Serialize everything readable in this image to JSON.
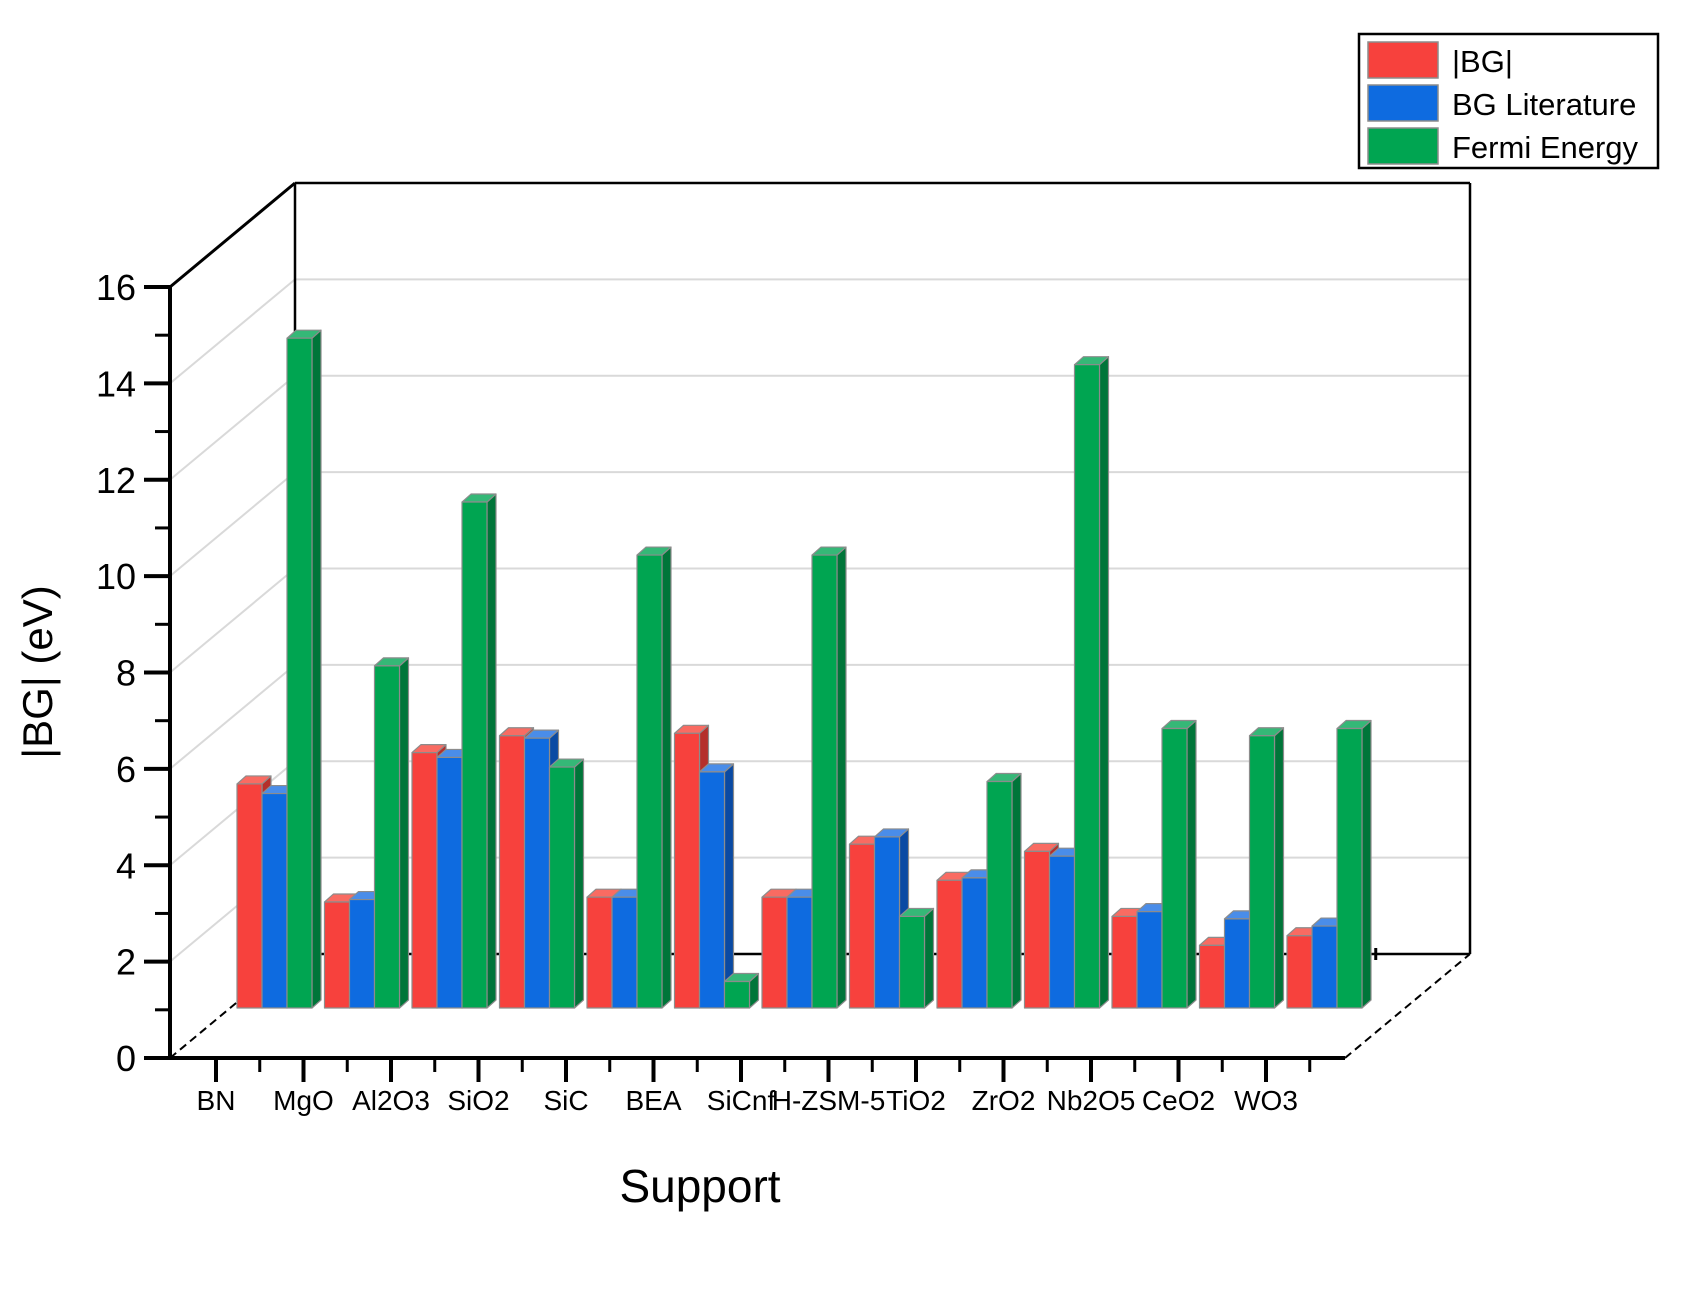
{
  "chart_data": {
    "type": "bar",
    "projection": "3d-parallel",
    "title": "",
    "xlabel": "Support",
    "ylabel": "|BG| (eV)",
    "ylim": [
      0,
      16
    ],
    "ytick_step": 2,
    "yticks": [
      0,
      2,
      4,
      6,
      8,
      10,
      12,
      14,
      16
    ],
    "grid": true,
    "legend_position": "top-right",
    "categories": [
      "BN",
      "MgO",
      "Al2O3",
      "SiO2",
      "SiC",
      "BEA",
      "SiCnf",
      "H-ZSM-5",
      "TiO2",
      "ZrO2",
      "Nb2O5",
      "CeO2",
      "WO3"
    ],
    "series": [
      {
        "name": "|BG|",
        "color": "#f7413d",
        "color_top": "#f96b62",
        "color_side": "#b52f2b",
        "values": [
          4.65,
          2.2,
          5.3,
          5.65,
          2.3,
          5.7,
          2.3,
          3.4,
          2.65,
          3.25,
          1.9,
          1.3,
          1.5
        ]
      },
      {
        "name": "BG Literature",
        "color": "#0e6be0",
        "color_top": "#4a8de9",
        "color_side": "#0a4aa3",
        "values": [
          4.45,
          2.25,
          5.2,
          5.6,
          2.3,
          4.9,
          2.3,
          3.55,
          2.7,
          3.15,
          2.0,
          1.85,
          1.7
        ]
      },
      {
        "name": "Fermi Energy",
        "color": "#00a551",
        "color_top": "#35b877",
        "color_side": "#007539",
        "values": [
          13.9,
          7.1,
          10.5,
          5.0,
          9.4,
          0.55,
          9.4,
          1.9,
          4.7,
          13.35,
          5.8,
          5.65,
          5.8
        ]
      }
    ]
  }
}
